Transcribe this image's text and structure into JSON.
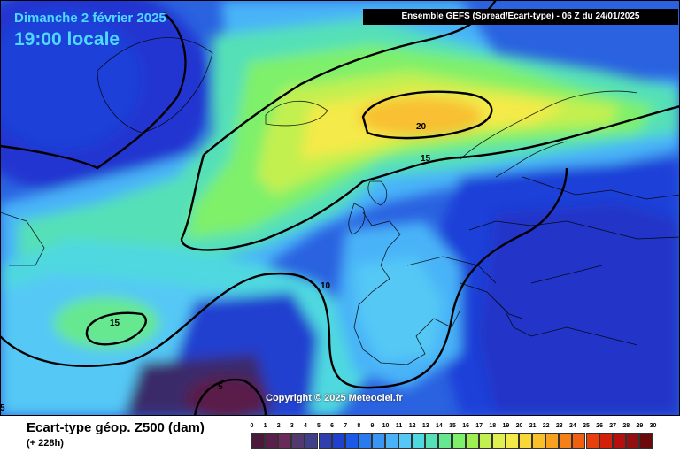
{
  "header": {
    "date": "Dimanche 2 février 2025",
    "time": "19:00 locale",
    "run_info": "Ensemble GEFS  (Spread/Ecart-type) - 06 Z du 24/01/2025"
  },
  "map": {
    "contour_labels": [
      "20",
      "15",
      "10",
      "15",
      "5",
      "5"
    ],
    "copyright": "Copyright © 2025 Meteociel.fr"
  },
  "footer": {
    "title": "Ecart-type géop. Z500 (dam)",
    "subtitle": "(+ 228h)"
  },
  "scale": {
    "ticks": [
      "0",
      "1",
      "2",
      "3",
      "4",
      "5",
      "6",
      "7",
      "8",
      "9",
      "10",
      "11",
      "12",
      "13",
      "14",
      "15",
      "16",
      "17",
      "18",
      "19",
      "20",
      "21",
      "22",
      "23",
      "24",
      "25",
      "26",
      "27",
      "28",
      "29",
      "30"
    ],
    "colors": [
      "#4a1a3a",
      "#5a1f4a",
      "#6a2a5a",
      "#523a6e",
      "#3f3f8a",
      "#2f3fb0",
      "#2040d0",
      "#1a5ae6",
      "#2a7af0",
      "#3a96f5",
      "#4ab3f8",
      "#55c8f5",
      "#4fd8e0",
      "#55e0b8",
      "#66e890",
      "#7ef06a",
      "#9ef050",
      "#c2f050",
      "#e0f050",
      "#f4ea48",
      "#f8d838",
      "#fac02a",
      "#f8a020",
      "#f58018",
      "#f06010",
      "#e8400c",
      "#d42008",
      "#b41010",
      "#941010",
      "#6a0a0a",
      "#300000"
    ],
    "accent_text": "#4fd8ff"
  }
}
